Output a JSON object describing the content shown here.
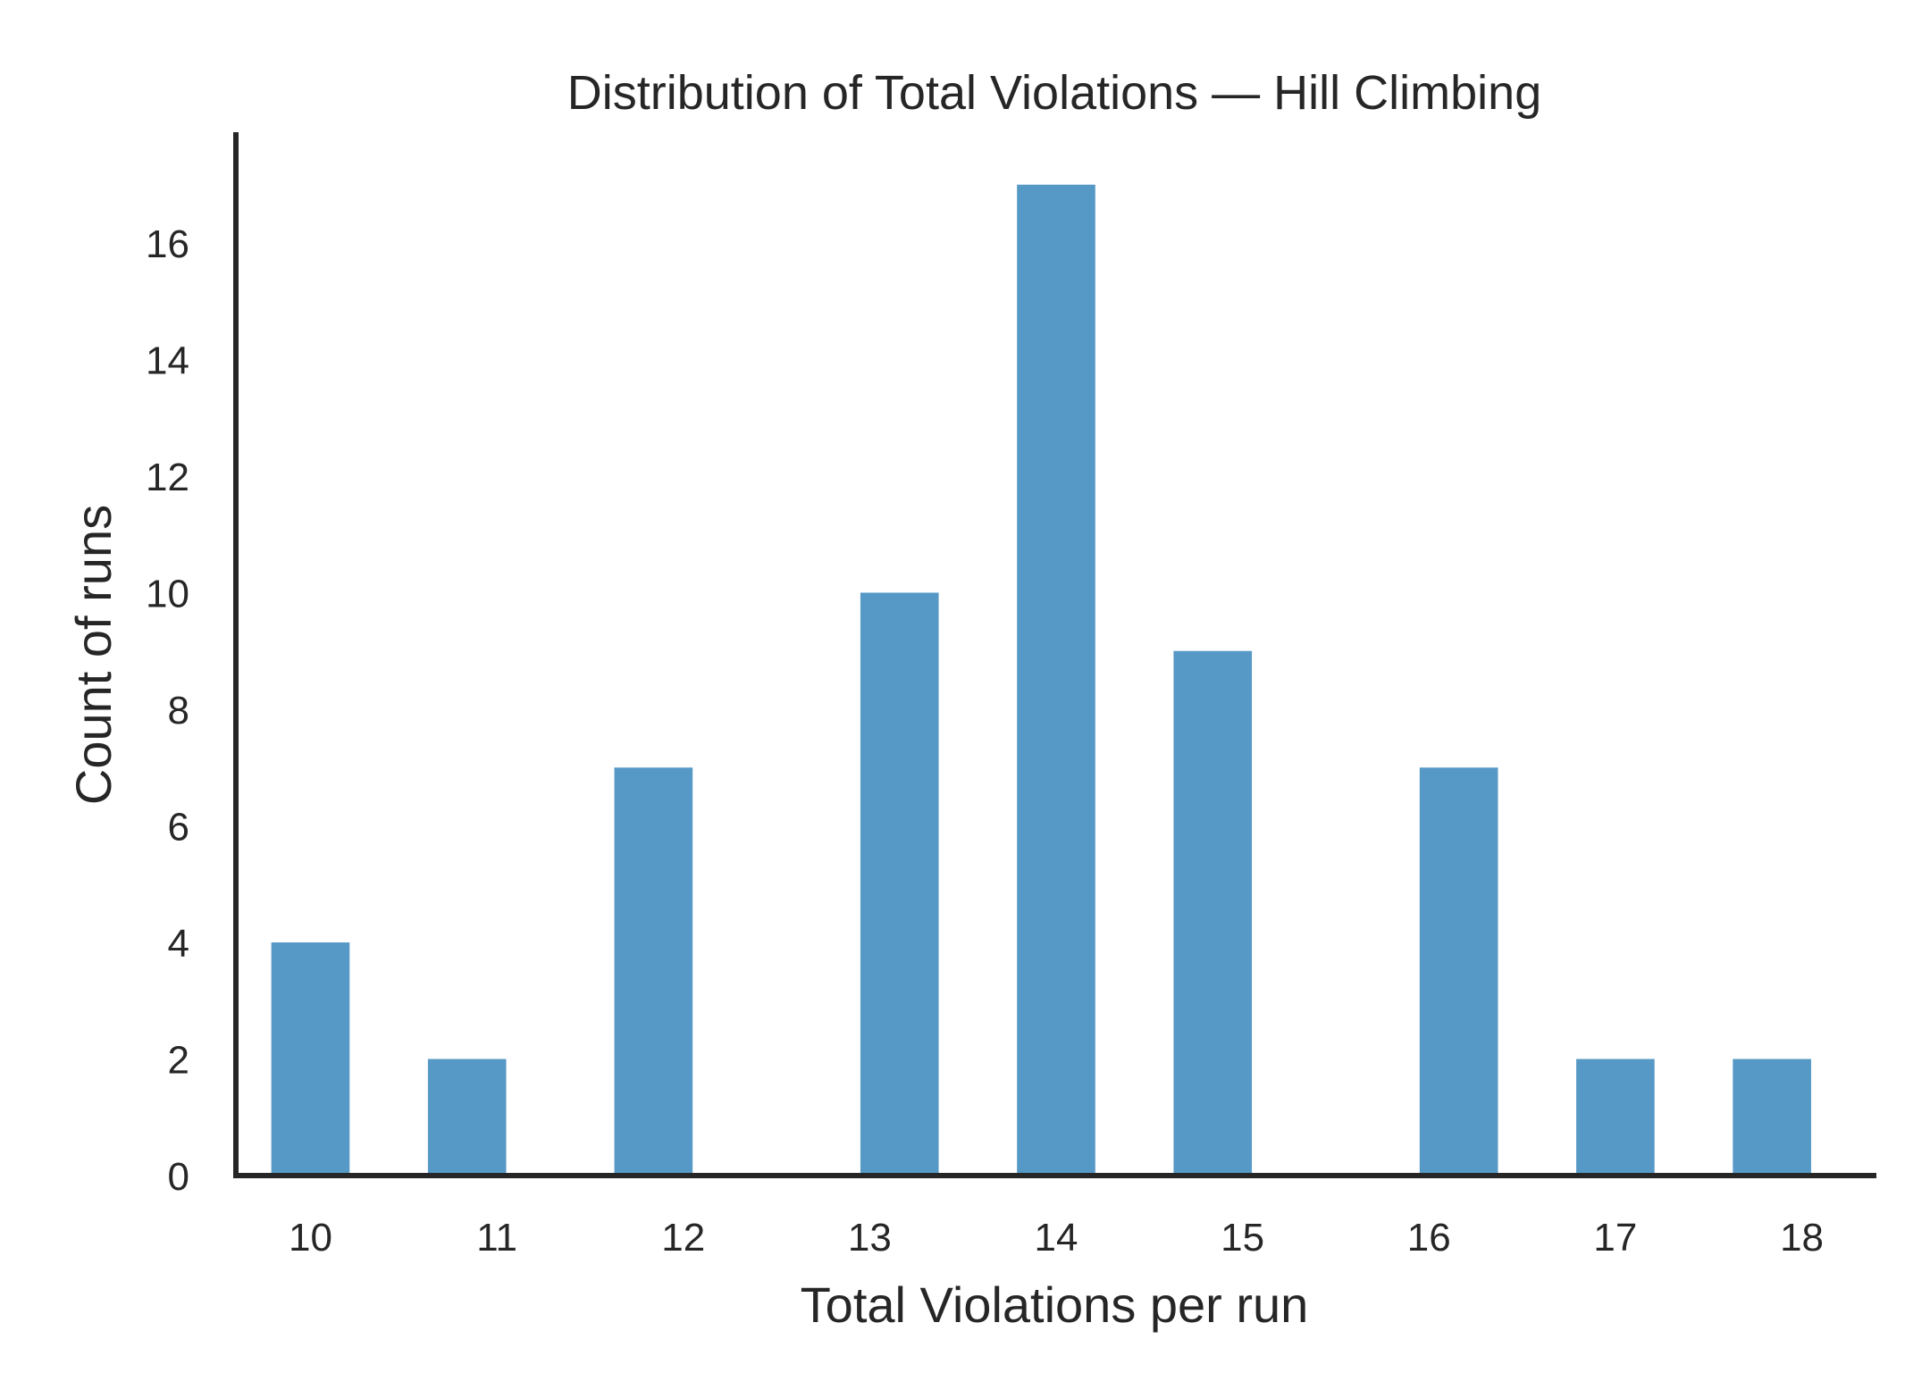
{
  "chart_data": {
    "type": "bar",
    "title": "Distribution of Total Violations — Hill Climbing",
    "xlabel": "Total Violations per run",
    "ylabel": "Count of runs",
    "categories": [
      "10",
      "11",
      "12",
      "13",
      "14",
      "15",
      "16",
      "17",
      "18"
    ],
    "x": [
      10,
      10.84,
      11.84,
      13.16,
      14.0,
      14.84,
      16.16,
      17.0,
      17.84
    ],
    "values": [
      4,
      2,
      7,
      10,
      17,
      9,
      7,
      2,
      2
    ],
    "x_ticks": [
      10,
      11,
      12,
      13,
      14,
      15,
      16,
      17,
      18
    ],
    "y_ticks": [
      0,
      2,
      4,
      6,
      8,
      10,
      12,
      14,
      16
    ],
    "xlim": [
      9.6,
      18.4
    ],
    "ylim": [
      0,
      17.9
    ],
    "bar_color": "#5799c6",
    "grid": false,
    "legend": "none"
  }
}
